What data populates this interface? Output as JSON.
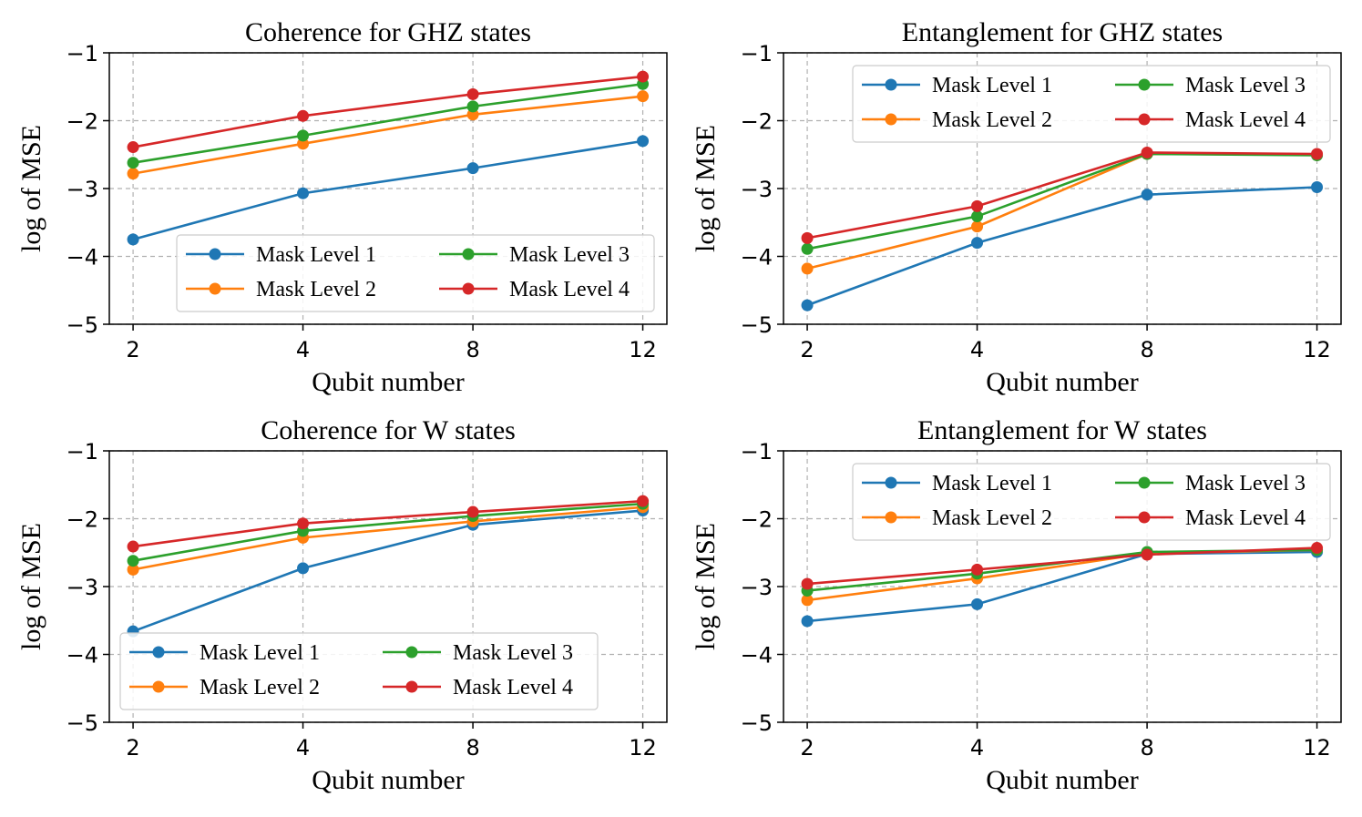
{
  "colors": {
    "Mask Level 1": "#1f77b4",
    "Mask Level 2": "#ff7f0e",
    "Mask Level 3": "#2ca02c",
    "Mask Level 4": "#d62728"
  },
  "chart_data": [
    {
      "type": "line",
      "title": "Coherence for GHZ states",
      "xlabel": "Qubit number",
      "ylabel": "log of MSE",
      "categories": [
        "2",
        "4",
        "8",
        "12"
      ],
      "yticks": [
        "−1",
        "−2",
        "−3",
        "−4",
        "−5"
      ],
      "ylim": [
        -5,
        -1
      ],
      "grid": true,
      "legend": "lower-right",
      "series": [
        {
          "name": "Mask Level 1",
          "values": [
            -3.75,
            -3.07,
            -2.7,
            -2.3
          ]
        },
        {
          "name": "Mask Level 2",
          "values": [
            -2.78,
            -2.34,
            -1.91,
            -1.64
          ]
        },
        {
          "name": "Mask Level 3",
          "values": [
            -2.62,
            -2.22,
            -1.79,
            -1.46
          ]
        },
        {
          "name": "Mask Level 4",
          "values": [
            -2.39,
            -1.93,
            -1.61,
            -1.35
          ]
        }
      ]
    },
    {
      "type": "line",
      "title": "Entanglement for GHZ states",
      "xlabel": "Qubit number",
      "ylabel": "log of MSE",
      "categories": [
        "2",
        "4",
        "8",
        "12"
      ],
      "yticks": [
        "−1",
        "−2",
        "−3",
        "−4",
        "−5"
      ],
      "ylim": [
        -5,
        -1
      ],
      "grid": true,
      "legend": "upper-right",
      "series": [
        {
          "name": "Mask Level 1",
          "values": [
            -4.72,
            -3.8,
            -3.09,
            -2.98
          ]
        },
        {
          "name": "Mask Level 2",
          "values": [
            -4.18,
            -3.56,
            -2.49,
            -2.5
          ]
        },
        {
          "name": "Mask Level 3",
          "values": [
            -3.89,
            -3.41,
            -2.49,
            -2.51
          ]
        },
        {
          "name": "Mask Level 4",
          "values": [
            -3.73,
            -3.26,
            -2.47,
            -2.49
          ]
        }
      ]
    },
    {
      "type": "line",
      "title": "Coherence for W states",
      "xlabel": "Qubit number",
      "ylabel": "log of MSE",
      "categories": [
        "2",
        "4",
        "8",
        "12"
      ],
      "yticks": [
        "−1",
        "−2",
        "−3",
        "−4",
        "−5"
      ],
      "ylim": [
        -5,
        -1
      ],
      "grid": true,
      "legend": "lower-center",
      "series": [
        {
          "name": "Mask Level 1",
          "values": [
            -3.66,
            -2.73,
            -2.09,
            -1.88
          ]
        },
        {
          "name": "Mask Level 2",
          "values": [
            -2.75,
            -2.28,
            -2.04,
            -1.83
          ]
        },
        {
          "name": "Mask Level 3",
          "values": [
            -2.62,
            -2.18,
            -1.96,
            -1.78
          ]
        },
        {
          "name": "Mask Level 4",
          "values": [
            -2.41,
            -2.07,
            -1.9,
            -1.74
          ]
        }
      ]
    },
    {
      "type": "line",
      "title": "Entanglement for W states",
      "xlabel": "Qubit number",
      "ylabel": "log of MSE",
      "categories": [
        "2",
        "4",
        "8",
        "12"
      ],
      "yticks": [
        "−1",
        "−2",
        "−3",
        "−4",
        "−5"
      ],
      "ylim": [
        -5,
        -1
      ],
      "grid": true,
      "legend": "upper-right",
      "series": [
        {
          "name": "Mask Level 1",
          "values": [
            -3.51,
            -3.26,
            -2.52,
            -2.49
          ]
        },
        {
          "name": "Mask Level 2",
          "values": [
            -3.2,
            -2.88,
            -2.51,
            -2.46
          ]
        },
        {
          "name": "Mask Level 3",
          "values": [
            -3.06,
            -2.81,
            -2.49,
            -2.46
          ]
        },
        {
          "name": "Mask Level 4",
          "values": [
            -2.96,
            -2.75,
            -2.53,
            -2.43
          ]
        }
      ]
    }
  ]
}
